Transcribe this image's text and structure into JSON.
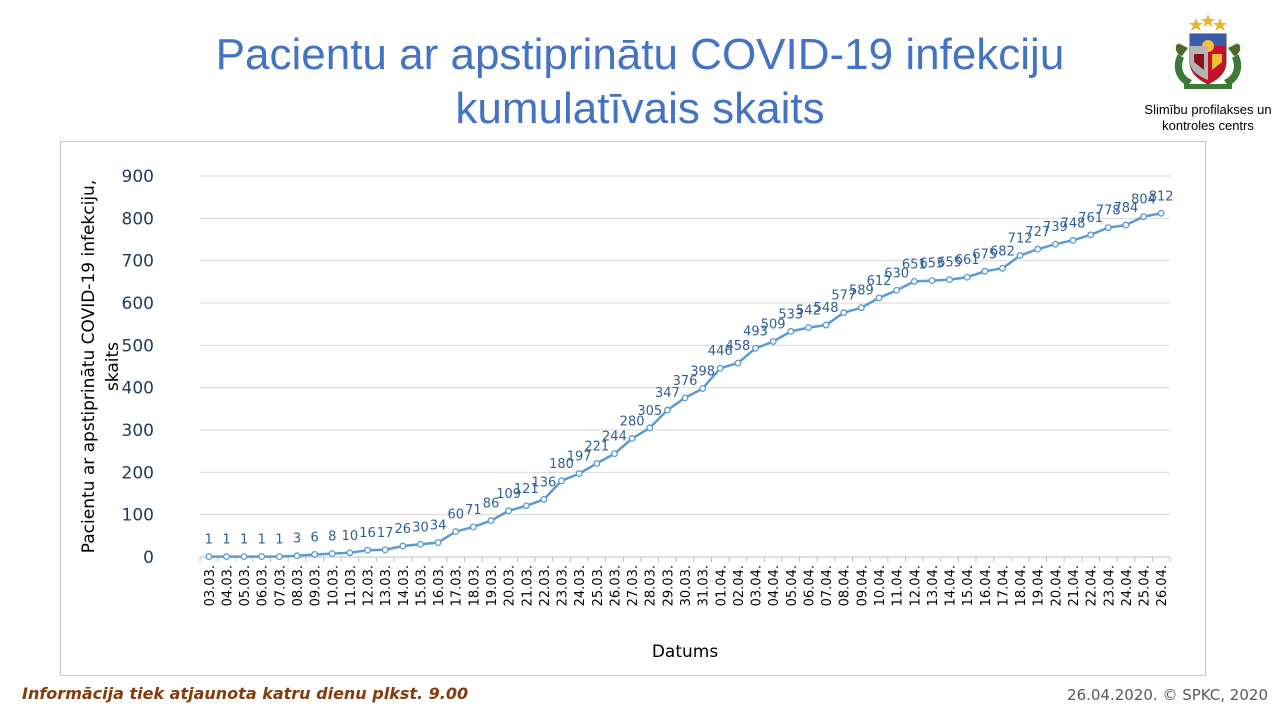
{
  "page": {
    "title_line1": "Pacientu ar apstiprinātu COVID-19 infekciju",
    "title_line2": "kumulatīvais skaits",
    "org_name": "Slimību profilakses un\nkontroles centrs",
    "footer_note": "Informācija tiek atjaunota katru dienu plkst. 9.00",
    "footer_date": "26.04.2020. © SPKC, 2020",
    "logo_icon": "latvia-coat-of-arms-icon"
  },
  "chart_data": {
    "type": "line",
    "xlabel": "Datums",
    "ylabel": "Pacientu ar apstiprinātu COVID-19 infekciju, skaits",
    "ylim": [
      0,
      900
    ],
    "yticks": [
      0,
      100,
      200,
      300,
      400,
      500,
      600,
      700,
      800,
      900
    ],
    "grid": true,
    "legend": "none",
    "line_color": "#5b9bd5",
    "label_color": "#2e5f98",
    "categories": [
      "03.03.",
      "04.03.",
      "05.03.",
      "06.03.",
      "07.03.",
      "08.03.",
      "09.03.",
      "10.03.",
      "11.03.",
      "12.03.",
      "13.03.",
      "14.03.",
      "15.03.",
      "16.03.",
      "17.03.",
      "18.03.",
      "19.03.",
      "20.03.",
      "21.03.",
      "22.03.",
      "23.03.",
      "24.03.",
      "25.03.",
      "26.03.",
      "27.03.",
      "28.03.",
      "29.03.",
      "30.03.",
      "31.03.",
      "01.04.",
      "02.04.",
      "03.04.",
      "04.04.",
      "05.04.",
      "06.04.",
      "07.04.",
      "08.04.",
      "09.04.",
      "10.04.",
      "11.04.",
      "12.04.",
      "13.04.",
      "14.04.",
      "15.04.",
      "16.04.",
      "17.04.",
      "18.04.",
      "19.04.",
      "20.04.",
      "21.04.",
      "22.04.",
      "23.04.",
      "24.04.",
      "25.04.",
      "26.04."
    ],
    "values": [
      1,
      1,
      1,
      1,
      1,
      3,
      6,
      8,
      10,
      16,
      17,
      26,
      30,
      34,
      60,
      71,
      86,
      109,
      121,
      136,
      180,
      197,
      221,
      244,
      280,
      305,
      347,
      376,
      398,
      446,
      458,
      493,
      509,
      533,
      542,
      548,
      577,
      589,
      612,
      630,
      651,
      653,
      655,
      661,
      675,
      682,
      712,
      727,
      739,
      748,
      761,
      778,
      784,
      804,
      812
    ]
  }
}
